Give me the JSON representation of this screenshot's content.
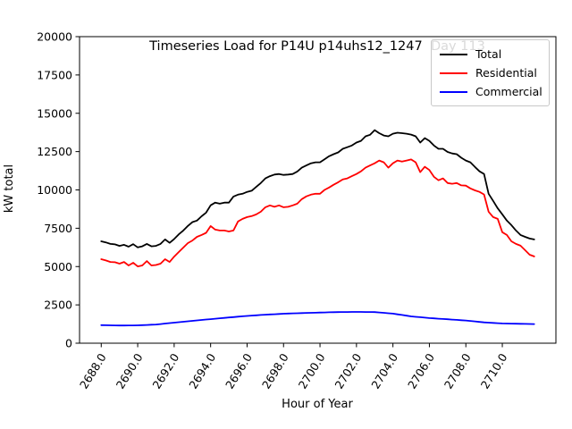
{
  "chart_data": {
    "type": "line",
    "title": "Timeseries Load for P14U p14uhs12_1247  Day 113",
    "xlabel": "Hour of Year",
    "ylabel": "kW total",
    "xlim": [
      2686.81,
      2712.94
    ],
    "ylim": [
      0,
      20000
    ],
    "grid": false,
    "legend_position": "upper right",
    "x_tick_values": [
      2688,
      2690,
      2692,
      2694,
      2696,
      2698,
      2700,
      2702,
      2704,
      2706,
      2708,
      2710
    ],
    "x_tick_labels": [
      "2688.0",
      "2690.0",
      "2692.0",
      "2694.0",
      "2696.0",
      "2698.0",
      "2700.0",
      "2702.0",
      "2704.0",
      "2706.0",
      "2708.0",
      "2710.0"
    ],
    "y_tick_values": [
      0,
      2500,
      5000,
      7500,
      10000,
      12500,
      15000,
      17500,
      20000
    ],
    "y_tick_labels": [
      "0",
      "2500",
      "5000",
      "7500",
      "10000",
      "12500",
      "15000",
      "17500",
      "20000"
    ],
    "x": [
      2688.0,
      2688.25,
      2688.5,
      2688.75,
      2689.0,
      2689.25,
      2689.5,
      2689.75,
      2690.0,
      2690.25,
      2690.5,
      2690.75,
      2691.0,
      2691.25,
      2691.5,
      2691.75,
      2692.0,
      2692.25,
      2692.5,
      2692.75,
      2693.0,
      2693.25,
      2693.5,
      2693.75,
      2694.0,
      2694.25,
      2694.5,
      2694.75,
      2695.0,
      2695.25,
      2695.5,
      2695.75,
      2696.0,
      2696.25,
      2696.5,
      2696.75,
      2697.0,
      2697.25,
      2697.5,
      2697.75,
      2698.0,
      2698.25,
      2698.5,
      2698.75,
      2699.0,
      2699.25,
      2699.5,
      2699.75,
      2700.0,
      2700.25,
      2700.5,
      2700.75,
      2701.0,
      2701.25,
      2701.5,
      2701.75,
      2702.0,
      2702.25,
      2702.5,
      2702.75,
      2703.0,
      2703.25,
      2703.5,
      2703.75,
      2704.0,
      2704.25,
      2704.5,
      2704.75,
      2705.0,
      2705.25,
      2705.5,
      2705.75,
      2706.0,
      2706.25,
      2706.5,
      2706.75,
      2707.0,
      2707.25,
      2707.5,
      2707.75,
      2708.0,
      2708.25,
      2708.5,
      2708.75,
      2709.0,
      2709.25,
      2709.5,
      2709.75,
      2710.0,
      2710.25,
      2710.5,
      2710.75,
      2711.0,
      2711.25,
      2711.5,
      2711.75
    ],
    "series": [
      {
        "name": "Total",
        "color": "#000000",
        "values": [
          6650,
          6580,
          6480,
          6450,
          6350,
          6420,
          6300,
          6460,
          6250,
          6320,
          6480,
          6320,
          6350,
          6480,
          6770,
          6550,
          6800,
          7100,
          7350,
          7650,
          7900,
          8000,
          8280,
          8520,
          9000,
          9170,
          9100,
          9170,
          9170,
          9570,
          9690,
          9750,
          9870,
          9950,
          10200,
          10450,
          10750,
          10900,
          11000,
          11040,
          10980,
          11000,
          11040,
          11200,
          11450,
          11600,
          11740,
          11800,
          11800,
          12000,
          12200,
          12330,
          12450,
          12680,
          12790,
          12900,
          13090,
          13200,
          13500,
          13600,
          13900,
          13700,
          13550,
          13500,
          13670,
          13730,
          13700,
          13670,
          13610,
          13500,
          13090,
          13380,
          13200,
          12900,
          12680,
          12680,
          12480,
          12380,
          12330,
          12100,
          11920,
          11800,
          11500,
          11210,
          11040,
          9750,
          9280,
          8800,
          8410,
          8000,
          7700,
          7350,
          7060,
          6940,
          6830,
          6770
        ]
      },
      {
        "name": "Residential",
        "color": "#ff0000",
        "values": [
          5480,
          5400,
          5300,
          5280,
          5190,
          5300,
          5070,
          5250,
          5010,
          5070,
          5360,
          5070,
          5100,
          5190,
          5480,
          5300,
          5650,
          5950,
          6240,
          6530,
          6700,
          6940,
          7060,
          7200,
          7645,
          7410,
          7350,
          7350,
          7290,
          7350,
          7940,
          8110,
          8230,
          8290,
          8400,
          8580,
          8870,
          8990,
          8900,
          8990,
          8870,
          8900,
          8990,
          9100,
          9400,
          9580,
          9690,
          9750,
          9750,
          10000,
          10160,
          10340,
          10500,
          10690,
          10750,
          10900,
          11040,
          11210,
          11450,
          11600,
          11740,
          11920,
          11800,
          11450,
          11740,
          11920,
          11850,
          11920,
          11990,
          11800,
          11160,
          11510,
          11300,
          10860,
          10630,
          10750,
          10450,
          10400,
          10450,
          10300,
          10280,
          10100,
          9970,
          9870,
          9700,
          8580,
          8230,
          8110,
          7240,
          7060,
          6650,
          6480,
          6360,
          6070,
          5770,
          5660
        ]
      },
      {
        "name": "Commercial",
        "color": "#0000ff",
        "values": [
          1180,
          1172,
          1165,
          1160,
          1155,
          1157,
          1159,
          1162,
          1165,
          1178,
          1190,
          1205,
          1220,
          1250,
          1280,
          1310,
          1340,
          1370,
          1400,
          1430,
          1460,
          1488,
          1515,
          1543,
          1570,
          1598,
          1625,
          1653,
          1680,
          1705,
          1730,
          1755,
          1780,
          1800,
          1820,
          1840,
          1860,
          1876,
          1892,
          1909,
          1925,
          1935,
          1945,
          1955,
          1965,
          1974,
          1983,
          1991,
          2000,
          2008,
          2015,
          2023,
          2030,
          2033,
          2035,
          2038,
          2040,
          2038,
          2035,
          2033,
          2030,
          2005,
          1980,
          1955,
          1930,
          1885,
          1840,
          1795,
          1750,
          1723,
          1695,
          1668,
          1640,
          1620,
          1600,
          1580,
          1560,
          1540,
          1520,
          1500,
          1480,
          1450,
          1420,
          1390,
          1360,
          1343,
          1325,
          1308,
          1290,
          1284,
          1278,
          1271,
          1265,
          1260,
          1255,
          1250
        ]
      }
    ]
  }
}
